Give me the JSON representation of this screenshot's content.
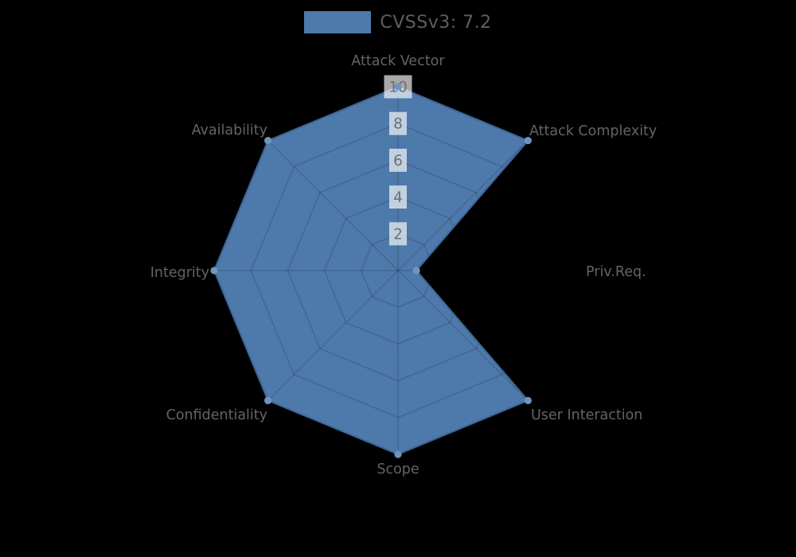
{
  "chart_data": {
    "type": "radar",
    "legend": "CVSSv3: 7.2",
    "categories": [
      "Attack Vector",
      "Attack Complexity",
      "Priv.Req.",
      "User Interaction",
      "Scope",
      "Confidentiality",
      "Integrity",
      "Availability"
    ],
    "series": [
      {
        "name": "CVSSv3: 7.2",
        "values": [
          10,
          10,
          1,
          10,
          10,
          10,
          10,
          10
        ]
      }
    ],
    "ticks": [
      2,
      4,
      6,
      8,
      10
    ],
    "axis_range": [
      0,
      10
    ],
    "grid": true,
    "grid_shape": "polygon",
    "legend_position": "top-center",
    "colors": {
      "background": "#000000",
      "fill": "#4e79ab",
      "border": "#3d6594",
      "marker": "#6f94c0",
      "grid": "rgba(0,0,0,0.14)",
      "tick_backdrop": "rgba(255,255,255,0.66)",
      "tick_text": "#6f6f6f",
      "label_text": "#646464",
      "legend_text": "#5f5f5f"
    }
  }
}
